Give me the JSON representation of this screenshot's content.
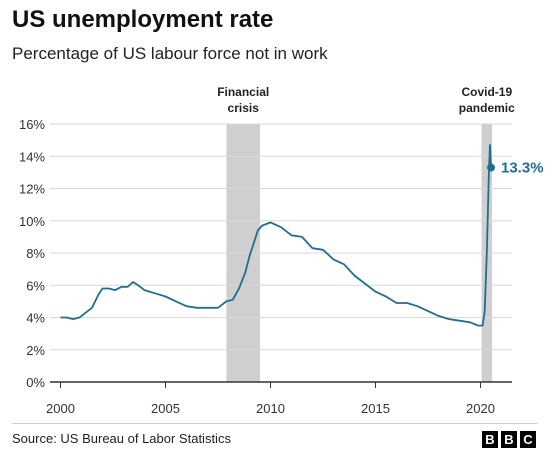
{
  "header": {
    "title": "US unemployment rate",
    "subtitle": "Percentage of US labour force not in work"
  },
  "footer": {
    "source": "Source: US Bureau of Labor Statistics",
    "logo_letters": [
      "B",
      "B",
      "C"
    ]
  },
  "colors": {
    "line": "#1f6f91",
    "shade": "#cfcfcf",
    "axis": "#333333",
    "grid": "#d9d9d9"
  },
  "chart_data": {
    "type": "line",
    "title": "US unemployment rate",
    "subtitle": "Percentage of US labour force not in work",
    "xlabel": "",
    "ylabel": "",
    "xlim": [
      1999.5,
      2021.5
    ],
    "ylim": [
      0,
      16
    ],
    "x_ticks": [
      2000,
      2005,
      2010,
      2015,
      2020
    ],
    "x_tick_labels": [
      "2000",
      "2005",
      "2010",
      "2015",
      "2020"
    ],
    "y_ticks": [
      0,
      2,
      4,
      6,
      8,
      10,
      12,
      14,
      16
    ],
    "y_tick_labels": [
      "0%",
      "2%",
      "4%",
      "6%",
      "8%",
      "10%",
      "12%",
      "14%",
      "16%"
    ],
    "grid": "horizontal",
    "shaded_periods": [
      {
        "start": 2007.9,
        "end": 2009.5,
        "label_lines": [
          "Financial",
          "crisis"
        ]
      },
      {
        "start": 2020.05,
        "end": 2020.55,
        "label_lines": [
          "Covid-19",
          "pandemic"
        ]
      }
    ],
    "series": [
      {
        "x": [
          2000.0,
          2000.3,
          2000.6,
          2000.9,
          2001.2,
          2001.5,
          2001.8,
          2002.0,
          2002.3,
          2002.6,
          2002.9,
          2003.2,
          2003.45,
          2003.7,
          2004.0,
          2004.5,
          2005.0,
          2005.5,
          2006.0,
          2006.5,
          2007.0,
          2007.5,
          2007.9,
          2008.2,
          2008.5,
          2008.8,
          2009.0,
          2009.2,
          2009.4,
          2009.6,
          2009.8,
          2010.0,
          2010.5,
          2011.0,
          2011.5,
          2012.0,
          2012.5,
          2013.0,
          2013.5,
          2014.0,
          2014.5,
          2015.0,
          2015.5,
          2016.0,
          2016.5,
          2017.0,
          2017.5,
          2018.0,
          2018.5,
          2019.0,
          2019.5,
          2019.9,
          2020.1,
          2020.2,
          2020.3,
          2020.4,
          2020.45,
          2020.5
        ],
        "values": [
          4.0,
          4.0,
          3.9,
          4.0,
          4.3,
          4.6,
          5.4,
          5.8,
          5.8,
          5.7,
          5.9,
          5.9,
          6.2,
          6.0,
          5.7,
          5.5,
          5.3,
          5.0,
          4.7,
          4.6,
          4.6,
          4.6,
          5.0,
          5.1,
          5.8,
          6.8,
          7.8,
          8.6,
          9.4,
          9.7,
          9.8,
          9.9,
          9.6,
          9.1,
          9.0,
          8.3,
          8.2,
          7.6,
          7.3,
          6.6,
          6.1,
          5.6,
          5.3,
          4.9,
          4.9,
          4.7,
          4.4,
          4.1,
          3.9,
          3.8,
          3.7,
          3.5,
          3.5,
          4.4,
          8.0,
          13.0,
          14.7,
          13.3
        ]
      }
    ],
    "annotations": [
      {
        "x": 2020.5,
        "y": 13.3,
        "text": "13.3%"
      }
    ]
  }
}
